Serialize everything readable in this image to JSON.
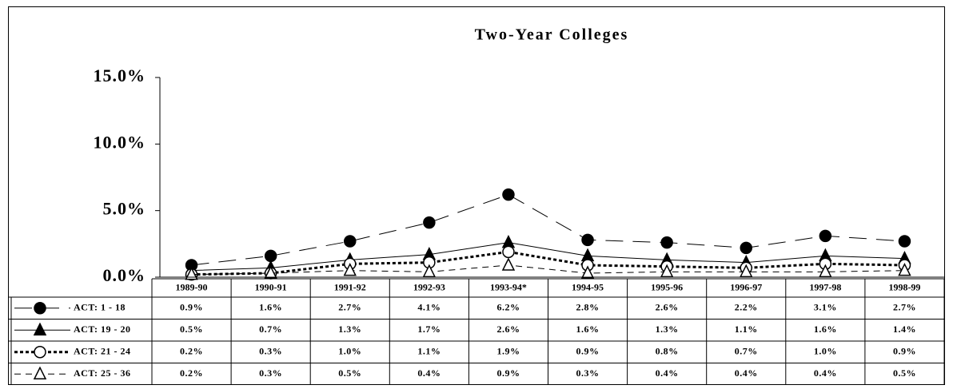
{
  "chart_data": {
    "type": "line",
    "title": "Two-Year Colleges",
    "categories": [
      "1989-90",
      "1990-91",
      "1991-92",
      "1992-93",
      "1993-94*",
      "1994-95",
      "1995-96",
      "1996-97",
      "1997-98",
      "1998-99"
    ],
    "ylim": [
      0,
      15
    ],
    "yticks": [
      {
        "value": 0,
        "label": "0.0%"
      },
      {
        "value": 5,
        "label": "5.0%"
      },
      {
        "value": 10,
        "label": "10.0%"
      },
      {
        "value": 15,
        "label": "15.0%"
      }
    ],
    "series": [
      {
        "name": "ACT: 1 - 18",
        "color": "#000000",
        "line_style": "long-dash",
        "marker": "filled-circle",
        "values": [
          0.9,
          1.6,
          2.7,
          4.1,
          6.2,
          2.8,
          2.6,
          2.2,
          3.1,
          2.7
        ],
        "value_labels": [
          "0.9%",
          "1.6%",
          "2.7%",
          "4.1%",
          "6.2%",
          "2.8%",
          "2.6%",
          "2.2%",
          "3.1%",
          "2.7%"
        ]
      },
      {
        "name": "ACT: 19 - 20",
        "color": "#000000",
        "line_style": "solid",
        "marker": "filled-triangle",
        "values": [
          0.5,
          0.7,
          1.3,
          1.7,
          2.6,
          1.6,
          1.3,
          1.1,
          1.6,
          1.4
        ],
        "value_labels": [
          "0.5%",
          "0.7%",
          "1.3%",
          "1.7%",
          "2.6%",
          "1.6%",
          "1.3%",
          "1.1%",
          "1.6%",
          "1.4%"
        ]
      },
      {
        "name": "ACT: 21 - 24",
        "color": "#000000",
        "line_style": "dotted",
        "marker": "open-circle",
        "values": [
          0.2,
          0.3,
          1.0,
          1.1,
          1.9,
          0.9,
          0.8,
          0.7,
          1.0,
          0.9
        ],
        "value_labels": [
          "0.2%",
          "0.3%",
          "1.0%",
          "1.1%",
          "1.9%",
          "0.9%",
          "0.8%",
          "0.7%",
          "1.0%",
          "0.9%"
        ]
      },
      {
        "name": "ACT: 25 - 36",
        "color": "#000000",
        "line_style": "dashed",
        "marker": "open-triangle",
        "values": [
          0.2,
          0.3,
          0.5,
          0.4,
          0.9,
          0.3,
          0.4,
          0.4,
          0.4,
          0.5
        ],
        "value_labels": [
          "0.2%",
          "0.3%",
          "0.5%",
          "0.4%",
          "0.9%",
          "0.3%",
          "0.4%",
          "0.4%",
          "0.4%",
          "0.5%"
        ]
      }
    ]
  }
}
